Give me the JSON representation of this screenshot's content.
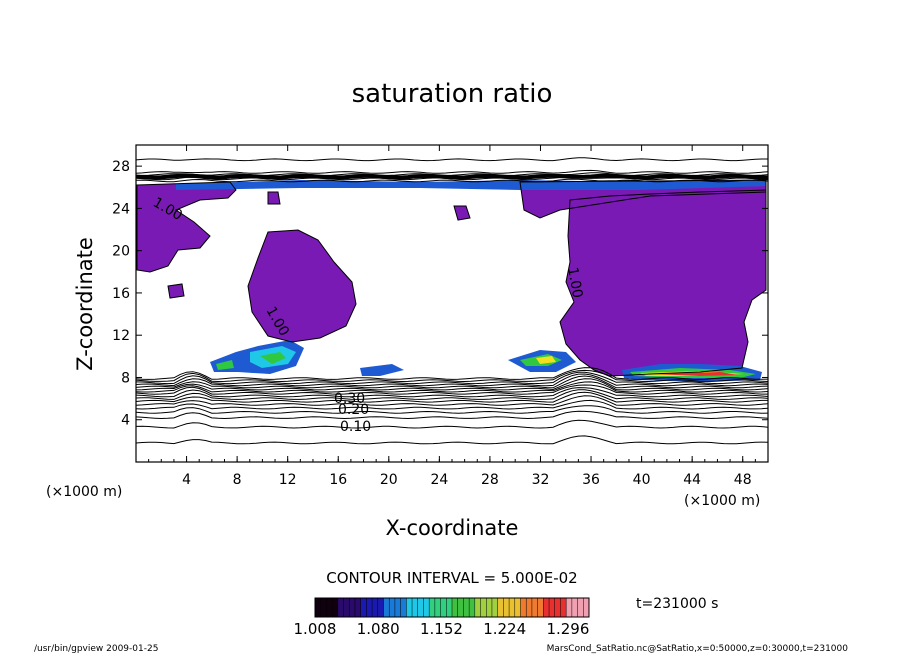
{
  "chart_data": {
    "type": "heatmap",
    "title": "saturation ratio",
    "xlabel": "X-coordinate",
    "ylabel": "Z-coordinate",
    "x_unit": "(×1000 m)",
    "y_unit": "(×1000 m)",
    "xlim": [
      0,
      50
    ],
    "ylim": [
      0,
      30
    ],
    "x_ticks": [
      4,
      8,
      12,
      16,
      20,
      24,
      28,
      32,
      36,
      40,
      44,
      48
    ],
    "y_ticks": [
      4,
      8,
      12,
      16,
      20,
      24,
      28
    ],
    "contour_interval": "CONTOUR INTERVAL = 5.000E-02",
    "contour_labels": [
      "0.10",
      "0.20",
      "0.30",
      "1.00"
    ],
    "colorbar": {
      "ticks": [
        "1.008",
        "1.080",
        "1.152",
        "1.224",
        "1.296"
      ],
      "range": [
        1.008,
        1.32
      ],
      "colors": [
        "#100010",
        "#2a0a6a",
        "#1a1ab0",
        "#1a7ad8",
        "#20c8e8",
        "#30d080",
        "#40c040",
        "#a0d040",
        "#e8c030",
        "#f07a30",
        "#e83030",
        "#f0a0b0"
      ]
    },
    "time_label": "t=231000 s",
    "footer_left": "/usr/bin/gpview  2009-01-25",
    "footer_right": "MarsCond_SatRatio.nc@SatRatio,x=0:50000,z=0:30000,t=231000",
    "fill_colors": {
      "supersat_base": "#7a1ab4",
      "cloud_blue": "#1e5ad2",
      "cloud_cyan": "#20c8e8",
      "cloud_green": "#30c840",
      "cloud_yellow": "#f0e020",
      "cloud_red": "#e83030"
    }
  }
}
